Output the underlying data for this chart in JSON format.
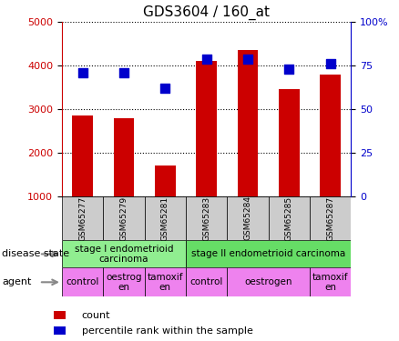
{
  "title": "GDS3604 / 160_at",
  "samples": [
    "GSM65277",
    "GSM65279",
    "GSM65281",
    "GSM65283",
    "GSM65284",
    "GSM65285",
    "GSM65287"
  ],
  "counts": [
    2850,
    2800,
    1700,
    4100,
    4350,
    3450,
    3800
  ],
  "percentiles": [
    71,
    71,
    62,
    79,
    79,
    73,
    76
  ],
  "ylim_left": [
    1000,
    5000
  ],
  "ylim_right": [
    0,
    100
  ],
  "yticks_left": [
    1000,
    2000,
    3000,
    4000,
    5000
  ],
  "yticks_right": [
    0,
    25,
    50,
    75,
    100
  ],
  "bar_color": "#cc0000",
  "dot_color": "#0000cc",
  "disease_state_row": [
    {
      "label": "stage I endometrioid\ncarcinoma",
      "start": 0,
      "end": 3,
      "color": "#90ee90"
    },
    {
      "label": "stage II endometrioid carcinoma",
      "start": 3,
      "end": 7,
      "color": "#66dd66"
    }
  ],
  "agent_row": [
    {
      "label": "control",
      "start": 0,
      "end": 1,
      "color": "#ee82ee"
    },
    {
      "label": "oestrog\nen",
      "start": 1,
      "end": 2,
      "color": "#ee82ee"
    },
    {
      "label": "tamoxif\nen",
      "start": 2,
      "end": 3,
      "color": "#ee82ee"
    },
    {
      "label": "control",
      "start": 3,
      "end": 4,
      "color": "#ee82ee"
    },
    {
      "label": "oestrogen",
      "start": 4,
      "end": 6,
      "color": "#ee82ee"
    },
    {
      "label": "tamoxif\nen",
      "start": 6,
      "end": 7,
      "color": "#ee82ee"
    }
  ],
  "left_label_disease": "disease state",
  "left_label_agent": "agent",
  "legend_count": "count",
  "legend_percentile": "percentile rank within the sample",
  "tick_label_color_left": "#cc0000",
  "tick_label_color_right": "#0000cc",
  "bar_width": 0.5,
  "dot_size": 55,
  "sample_box_color": "#cccccc",
  "arrow_color": "#888888"
}
